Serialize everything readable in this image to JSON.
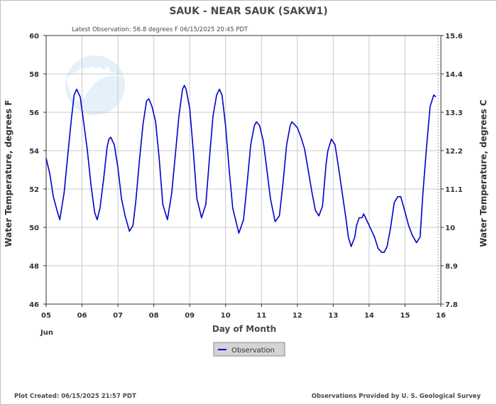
{
  "chart_data": {
    "type": "line",
    "title": "SAUK - NEAR SAUK  (SAKW1)",
    "subtitle": "Latest Observation: 56.8 degrees F 06/15/2025 20:45 PDT",
    "xlabel": "Day of Month",
    "ylabel": "Water Temperature, degrees F",
    "ylabel_right": "Water Temperature, degrees C",
    "x_tick_labels": [
      "05",
      "06",
      "07",
      "08",
      "09",
      "10",
      "11",
      "12",
      "13",
      "14",
      "15",
      "16"
    ],
    "x_month_label": "Jun",
    "xlim": [
      5,
      16
    ],
    "ylim": [
      46,
      60
    ],
    "y_ticks": [
      "46",
      "48",
      "50",
      "52",
      "54",
      "56",
      "58",
      "60"
    ],
    "y_right_ticks": [
      "7.8",
      "8.9",
      "10",
      "11.1",
      "12.2",
      "13.3",
      "14.4",
      "15.6"
    ],
    "grid": true,
    "legend": {
      "position": "bottom-center",
      "entries": [
        "Observation"
      ]
    },
    "line_color": "#0000cc",
    "series": [
      {
        "x": [
          5.0,
          5.1,
          5.2,
          5.3,
          5.38,
          5.5,
          5.6,
          5.7,
          5.78,
          5.85,
          5.95,
          6.05,
          6.15,
          6.25,
          6.35,
          6.42,
          6.5,
          6.6,
          6.7,
          6.75,
          6.8,
          6.9,
          7.0,
          7.1,
          7.2,
          7.32,
          7.42,
          7.5,
          7.6,
          7.7,
          7.8,
          7.86,
          7.95,
          8.05,
          8.15,
          8.25,
          8.38,
          8.5,
          8.6,
          8.7,
          8.8,
          8.85,
          8.9,
          9.0,
          9.1,
          9.2,
          9.33,
          9.45,
          9.55,
          9.65,
          9.75,
          9.83,
          9.9,
          10.0,
          10.1,
          10.2,
          10.37,
          10.5,
          10.6,
          10.7,
          10.8,
          10.86,
          10.95,
          11.05,
          11.15,
          11.25,
          11.38,
          11.5,
          11.6,
          11.7,
          11.8,
          11.85,
          12.0,
          12.1,
          12.2,
          12.3,
          12.4,
          12.5,
          12.6,
          12.7,
          12.8,
          12.85,
          12.95,
          13.05,
          13.15,
          13.25,
          13.35,
          13.42,
          13.5,
          13.6,
          13.65,
          13.72,
          13.8,
          13.85,
          13.95,
          14.05,
          14.15,
          14.25,
          14.35,
          14.42,
          14.5,
          14.6,
          14.7,
          14.8,
          14.88,
          15.0,
          15.1,
          15.2,
          15.32,
          15.42,
          15.5,
          15.6,
          15.7,
          15.8,
          15.86
        ],
        "values": [
          53.6,
          52.8,
          51.6,
          50.9,
          50.4,
          51.8,
          53.7,
          55.6,
          56.9,
          57.2,
          56.8,
          55.4,
          54.0,
          52.2,
          50.8,
          50.4,
          51.0,
          52.5,
          54.2,
          54.6,
          54.7,
          54.3,
          53.1,
          51.5,
          50.6,
          49.8,
          50.1,
          51.4,
          53.5,
          55.4,
          56.6,
          56.7,
          56.3,
          55.5,
          53.6,
          51.2,
          50.4,
          51.8,
          53.8,
          55.8,
          57.2,
          57.4,
          57.2,
          56.2,
          54.0,
          51.5,
          50.5,
          51.2,
          53.6,
          55.8,
          56.9,
          57.2,
          56.9,
          55.3,
          53.0,
          51.0,
          49.7,
          50.4,
          52.3,
          54.3,
          55.3,
          55.5,
          55.3,
          54.5,
          53.0,
          51.5,
          50.3,
          50.6,
          52.3,
          54.3,
          55.3,
          55.5,
          55.2,
          54.7,
          54.1,
          53.0,
          51.9,
          50.9,
          50.6,
          51.1,
          53.3,
          54.0,
          54.6,
          54.3,
          53.1,
          51.8,
          50.5,
          49.5,
          49.0,
          49.5,
          50.1,
          50.5,
          50.5,
          50.7,
          50.3,
          49.9,
          49.5,
          48.9,
          48.7,
          48.7,
          49.0,
          50.0,
          51.3,
          51.6,
          51.6,
          50.8,
          50.1,
          49.6,
          49.2,
          49.5,
          51.8,
          54.2,
          56.3,
          56.9,
          56.8
        ]
      }
    ]
  },
  "footer": {
    "left": "Plot Created: 06/15/2025 21:57 PDT",
    "right": "Observations Provided by U. S. Geological Survey"
  }
}
